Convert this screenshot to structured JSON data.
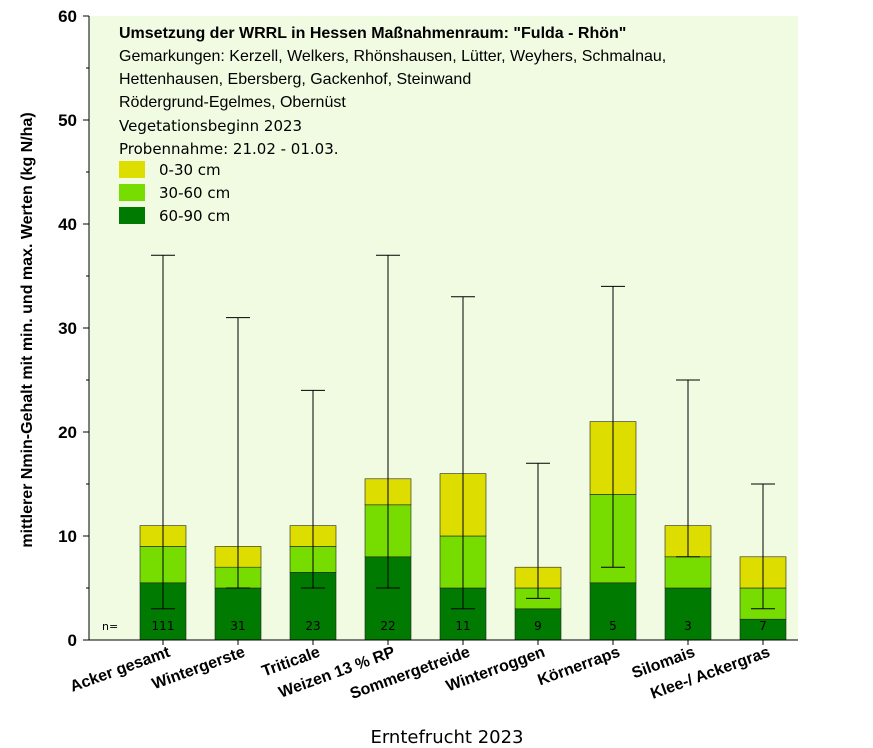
{
  "chart_data": {
    "type": "bar",
    "stacked": true,
    "title": "Umsetzung der WRRL in Hessen Maßnahmenraum: \"Fulda - Rhön\"",
    "subtitle_lines": [
      "Gemarkungen: Kerzell, Welkers, Rhönshausen, Lütter, Weyhers, Schmalnau,",
      "Hettenhausen, Ebersberg, Gackenhof, Steinwand",
      "Rödergrund-Egelmes, Obernüst"
    ],
    "info_lines": [
      "Vegetationsbeginn 2023",
      "Probennahme: 21.02 - 01.03."
    ],
    "xlabel": "Erntefrucht 2023",
    "ylabel": "mittlerer Nmin-Gehalt mit min. und max. Werten (kg N/ha)",
    "ylim": [
      0,
      60
    ],
    "yticks": [
      "0",
      "10",
      "20",
      "30",
      "40",
      "50",
      "60"
    ],
    "n_label": "n=",
    "legend_position": "top-left",
    "categories": [
      "Acker gesamt",
      "Wintergerste",
      "Triticale",
      "Weizen 13 % RP",
      "Sommergetreide",
      "Winterroggen",
      "Körnerraps",
      "Silomais",
      "Klee-/ Ackergras"
    ],
    "n": [
      "111",
      "31",
      "23",
      "22",
      "11",
      "9",
      "5",
      "3",
      "7"
    ],
    "series": [
      {
        "name": "60-90 cm",
        "color": "#007a00",
        "values": [
          5.5,
          5,
          6.5,
          8,
          5,
          3,
          5.5,
          5,
          2
        ]
      },
      {
        "name": "30-60 cm",
        "color": "#77dd00",
        "values": [
          3.5,
          2,
          2.5,
          5,
          5,
          2,
          8.5,
          3,
          3
        ]
      },
      {
        "name": "0-30 cm",
        "color": "#dddd00",
        "values": [
          2,
          2,
          2,
          2.5,
          6,
          2,
          7,
          3,
          3
        ]
      }
    ],
    "legend_order": [
      "0-30 cm",
      "30-60 cm",
      "60-90 cm"
    ],
    "min": [
      3,
      5,
      5,
      5,
      3,
      4,
      7,
      8,
      3
    ],
    "max": [
      37,
      31,
      24,
      37,
      33,
      17,
      34,
      25,
      15
    ],
    "colors": {
      "plot_background": "#f0fbe2",
      "axis": "#000000"
    }
  }
}
